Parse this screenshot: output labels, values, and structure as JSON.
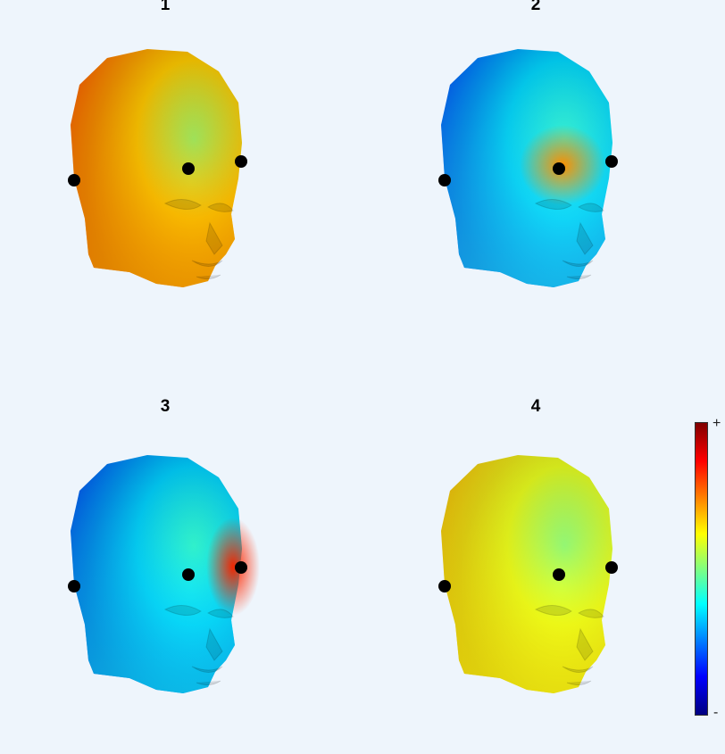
{
  "panels": [
    {
      "title": "1",
      "colors": {
        "back": "#ff2200",
        "mid": "#ffcc00",
        "front": "#80ff80",
        "chin": "#ffb000"
      }
    },
    {
      "title": "2",
      "colors": {
        "back": "#0010ff",
        "mid": "#00d8ff",
        "front": "#40ffcc",
        "chin": "#20e0ff",
        "spot": "#ff9000"
      }
    },
    {
      "title": "3",
      "colors": {
        "back": "#0008f0",
        "mid": "#00d0ff",
        "front": "#40ffc0",
        "chin": "#10e8ff",
        "spot": "#ff2800"
      }
    },
    {
      "title": "4",
      "colors": {
        "back": "#ffa000",
        "mid": "#e8ff20",
        "front": "#70ffa0",
        "chin": "#ffff10"
      }
    }
  ],
  "colorbar": {
    "top_label": "+",
    "bottom_label": "-"
  }
}
